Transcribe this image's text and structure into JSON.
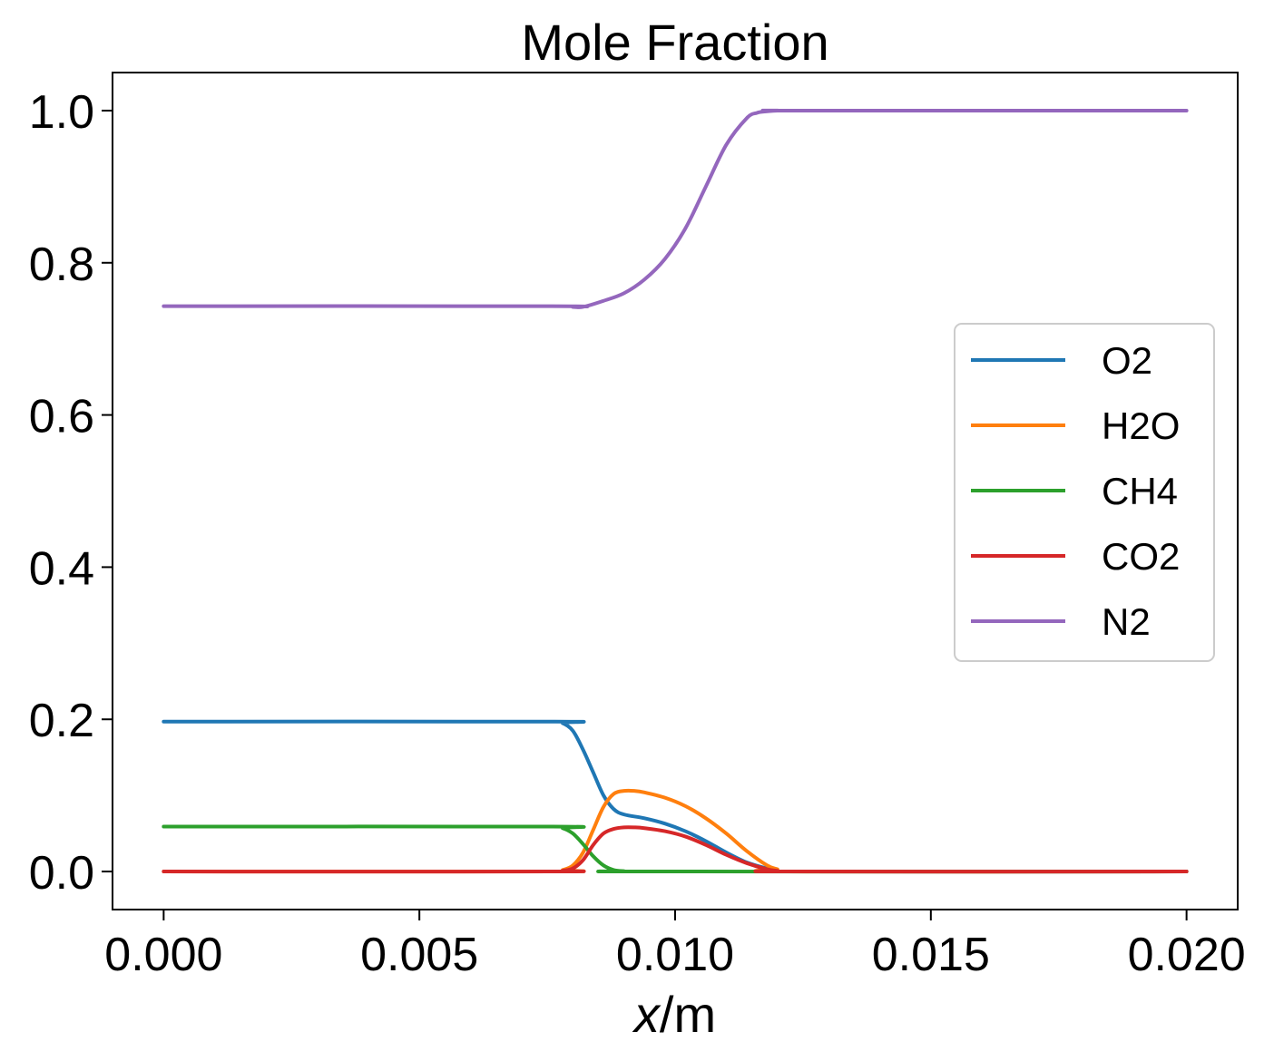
{
  "chart_data": {
    "type": "line",
    "title": "Mole Fraction",
    "xlabel": {
      "var": "x",
      "unit": "/m"
    },
    "ylabel": "",
    "xlim": [
      -0.001,
      0.021
    ],
    "ylim": [
      -0.05,
      1.05
    ],
    "xticks": [
      0.0,
      0.005,
      0.01,
      0.015,
      0.02
    ],
    "xtick_labels": [
      "0.000",
      "0.005",
      "0.010",
      "0.015",
      "0.020"
    ],
    "yticks": [
      0.0,
      0.2,
      0.4,
      0.6,
      0.8,
      1.0
    ],
    "ytick_labels": [
      "0.0",
      "0.2",
      "0.4",
      "0.6",
      "0.8",
      "1.0"
    ],
    "grid": false,
    "legend_position": "center-right",
    "series": [
      {
        "name": "O2",
        "color": "#1f77b4",
        "x": [
          0.0,
          0.0076,
          0.0078,
          0.008,
          0.0082,
          0.0084,
          0.0086,
          0.0088,
          0.009,
          0.0094,
          0.0098,
          0.0102,
          0.0106,
          0.011,
          0.0114,
          0.0118,
          0.012,
          0.0122,
          0.02
        ],
        "y": [
          0.197,
          0.197,
          0.195,
          0.185,
          0.16,
          0.13,
          0.1,
          0.082,
          0.075,
          0.07,
          0.063,
          0.053,
          0.04,
          0.025,
          0.012,
          0.004,
          0.002,
          0.0,
          0.0
        ]
      },
      {
        "name": "H2O",
        "color": "#ff7f0e",
        "x": [
          0.0,
          0.0076,
          0.0078,
          0.008,
          0.0082,
          0.0084,
          0.0086,
          0.0088,
          0.009,
          0.0092,
          0.0094,
          0.0098,
          0.0102,
          0.0106,
          0.011,
          0.0114,
          0.0118,
          0.012,
          0.0122,
          0.02
        ],
        "y": [
          0.0,
          0.0,
          0.002,
          0.008,
          0.025,
          0.055,
          0.085,
          0.102,
          0.106,
          0.106,
          0.104,
          0.097,
          0.086,
          0.07,
          0.05,
          0.027,
          0.008,
          0.003,
          0.0,
          0.0
        ]
      },
      {
        "name": "CH4",
        "color": "#2ca02c",
        "x": [
          0.0,
          0.0076,
          0.0078,
          0.008,
          0.0082,
          0.0084,
          0.0086,
          0.0088,
          0.009,
          0.0094,
          0.02
        ],
        "y": [
          0.059,
          0.059,
          0.057,
          0.05,
          0.036,
          0.02,
          0.008,
          0.002,
          0.0005,
          0.0,
          0.0
        ]
      },
      {
        "name": "CO2",
        "color": "#d62728",
        "x": [
          0.0,
          0.0076,
          0.0078,
          0.008,
          0.0082,
          0.0084,
          0.0086,
          0.0088,
          0.009,
          0.0092,
          0.0094,
          0.0098,
          0.0102,
          0.0106,
          0.011,
          0.0114,
          0.0118,
          0.012,
          0.0122,
          0.02
        ],
        "y": [
          0.0,
          0.0,
          0.001,
          0.004,
          0.015,
          0.035,
          0.05,
          0.056,
          0.058,
          0.058,
          0.057,
          0.053,
          0.046,
          0.035,
          0.022,
          0.011,
          0.003,
          0.001,
          0.0,
          0.0
        ]
      },
      {
        "name": "N2",
        "color": "#9467bd",
        "x": [
          0.0,
          0.0076,
          0.008,
          0.0082,
          0.0086,
          0.009,
          0.0094,
          0.0098,
          0.0102,
          0.0106,
          0.011,
          0.0114,
          0.0116,
          0.0118,
          0.012,
          0.0124,
          0.02
        ],
        "y": [
          0.743,
          0.743,
          0.742,
          0.742,
          0.75,
          0.76,
          0.778,
          0.805,
          0.845,
          0.9,
          0.955,
          0.99,
          0.997,
          0.999,
          1.0,
          1.0,
          1.0
        ]
      }
    ]
  }
}
